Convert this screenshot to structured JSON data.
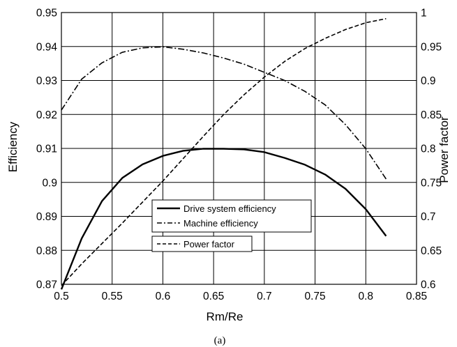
{
  "chart_data": {
    "type": "line",
    "caption": "(a)",
    "xlabel": "Rm/Re",
    "ylabel_left": "Efficiency",
    "ylabel_right": "Power factor",
    "xlim": [
      0.5,
      0.85
    ],
    "ylim_left": [
      0.87,
      0.95
    ],
    "ylim_right": [
      0.6,
      1.0
    ],
    "x_ticks": [
      "0.5",
      "0.55",
      "0.6",
      "0.65",
      "0.7",
      "0.75",
      "0.8",
      "0.85"
    ],
    "y_left_ticks": [
      "0.87",
      "0.88",
      "0.89",
      "0.9",
      "0.91",
      "0.92",
      "0.93",
      "0.94",
      "0.95"
    ],
    "y_right_ticks": [
      "0.6",
      "0.65",
      "0.7",
      "0.75",
      "0.8",
      "0.85",
      "0.9",
      "0.95",
      "1"
    ],
    "grid": true,
    "legend_position": "center-bottom",
    "series": [
      {
        "name": "Drive system efficiency",
        "axis": "left",
        "style": "solid",
        "x": [
          0.5,
          0.52,
          0.54,
          0.56,
          0.58,
          0.6,
          0.62,
          0.64,
          0.66,
          0.68,
          0.7,
          0.72,
          0.74,
          0.76,
          0.78,
          0.8,
          0.82
        ],
        "y": [
          0.8685,
          0.8835,
          0.8945,
          0.9013,
          0.9053,
          0.9078,
          0.9093,
          0.9099,
          0.9099,
          0.9097,
          0.9089,
          0.9072,
          0.9052,
          0.9023,
          0.8981,
          0.8921,
          0.8842
        ]
      },
      {
        "name": "Machine efficiency",
        "axis": "left",
        "style": "dashdot",
        "x": [
          0.5,
          0.52,
          0.54,
          0.56,
          0.58,
          0.6,
          0.62,
          0.64,
          0.66,
          0.68,
          0.7,
          0.72,
          0.74,
          0.76,
          0.78,
          0.8,
          0.82
        ],
        "y": [
          0.9213,
          0.9304,
          0.9352,
          0.9383,
          0.9396,
          0.9399,
          0.9392,
          0.9381,
          0.9366,
          0.9348,
          0.9324,
          0.93,
          0.9268,
          0.9228,
          0.917,
          0.9099,
          0.901
        ]
      },
      {
        "name": "Power factor",
        "axis": "right",
        "style": "dashed",
        "x": [
          0.5,
          0.52,
          0.54,
          0.56,
          0.58,
          0.6,
          0.62,
          0.64,
          0.66,
          0.68,
          0.7,
          0.72,
          0.74,
          0.76,
          0.78,
          0.8,
          0.82
        ],
        "y": [
          0.598,
          0.63,
          0.66,
          0.69,
          0.721,
          0.752,
          0.785,
          0.818,
          0.85,
          0.879,
          0.905,
          0.928,
          0.947,
          0.962,
          0.975,
          0.985,
          0.991
        ]
      }
    ]
  }
}
